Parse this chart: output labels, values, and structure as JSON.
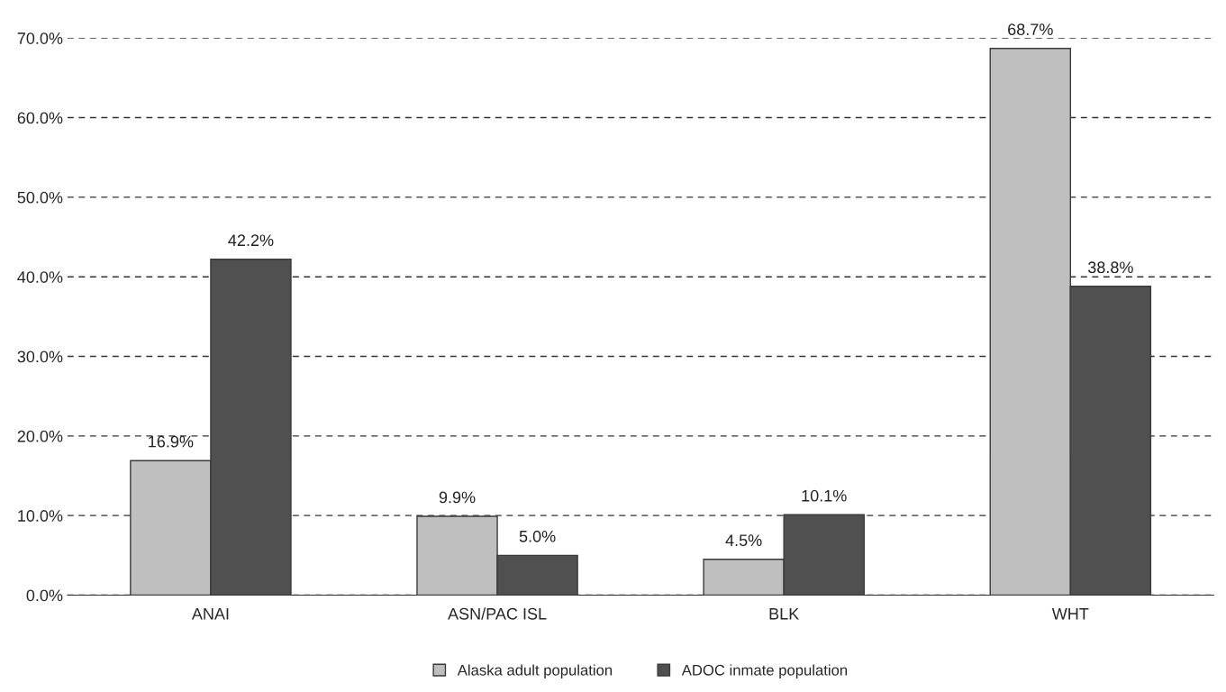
{
  "chart_data": {
    "type": "bar",
    "categories": [
      "ANAI",
      "ASN/PAC ISL",
      "BLK",
      "WHT"
    ],
    "series": [
      {
        "name": "Alaska adult population",
        "color": "#bfbfbf",
        "values": [
          16.9,
          9.9,
          4.5,
          68.7
        ],
        "value_labels": [
          "16.9%",
          "9.9%",
          "4.5%",
          "68.7%"
        ]
      },
      {
        "name": "ADOC inmate population",
        "color": "#505050",
        "values": [
          42.2,
          5.0,
          10.1,
          38.8
        ],
        "value_labels": [
          "42.2%",
          "5.0%",
          "10.1%",
          "38.8%"
        ]
      }
    ],
    "ylim": [
      0,
      70
    ],
    "yticks": [
      {
        "value": 0,
        "label": "0.0%"
      },
      {
        "value": 10,
        "label": "10.0%"
      },
      {
        "value": 20,
        "label": "20.0%"
      },
      {
        "value": 30,
        "label": "30.0%"
      },
      {
        "value": 40,
        "label": "40.0%"
      },
      {
        "value": 50,
        "label": "50.0%"
      },
      {
        "value": 60,
        "label": "60.0%"
      },
      {
        "value": 70,
        "label": "70.0%"
      }
    ],
    "grid": "y",
    "line_style": "dashed",
    "legend": "bottom"
  }
}
